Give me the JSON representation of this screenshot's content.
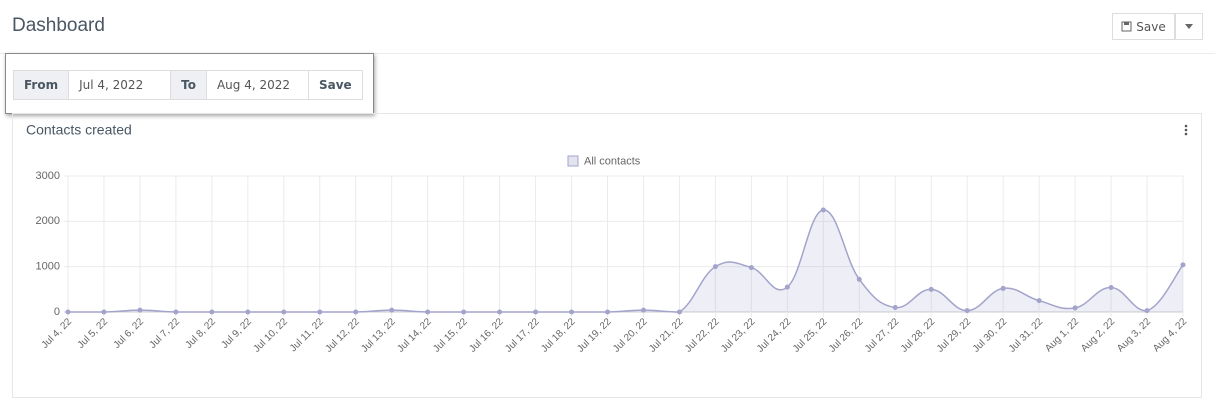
{
  "header": {
    "title": "Dashboard",
    "save_button": "Save"
  },
  "filter": {
    "from_label": "From",
    "from_value": "Jul 4, 2022",
    "to_label": "To",
    "to_value": "Aug 4, 2022",
    "save_button": "Save"
  },
  "chart_data": {
    "type": "line",
    "title": "Contacts created",
    "categories": [
      "Jul 4, 22",
      "Jul 5, 22",
      "Jul 6, 22",
      "Jul 7, 22",
      "Jul 8, 22",
      "Jul 9, 22",
      "Jul 10, 22",
      "Jul 11, 22",
      "Jul 12, 22",
      "Jul 13, 22",
      "Jul 14, 22",
      "Jul 15, 22",
      "Jul 16, 22",
      "Jul 17, 22",
      "Jul 18, 22",
      "Jul 19, 22",
      "Jul 20, 22",
      "Jul 21, 22",
      "Jul 22, 22",
      "Jul 23, 22",
      "Jul 24, 22",
      "Jul 25, 22",
      "Jul 26, 22",
      "Jul 27, 22",
      "Jul 28, 22",
      "Jul 29, 22",
      "Jul 30, 22",
      "Jul 31, 22",
      "Aug 1, 22",
      "Aug 2, 22",
      "Aug 3, 22",
      "Aug 4, 22"
    ],
    "series": [
      {
        "name": "All contacts",
        "color": "#a3a3cc",
        "values": [
          0,
          0,
          40,
          0,
          0,
          0,
          0,
          0,
          0,
          40,
          0,
          0,
          0,
          0,
          0,
          0,
          40,
          0,
          1000,
          980,
          550,
          2250,
          720,
          100,
          500,
          30,
          520,
          250,
          90,
          540,
          30,
          1040
        ]
      }
    ],
    "ylim": [
      0,
      3000
    ],
    "yticks": [
      0,
      1000,
      2000,
      3000
    ],
    "grid": true
  }
}
